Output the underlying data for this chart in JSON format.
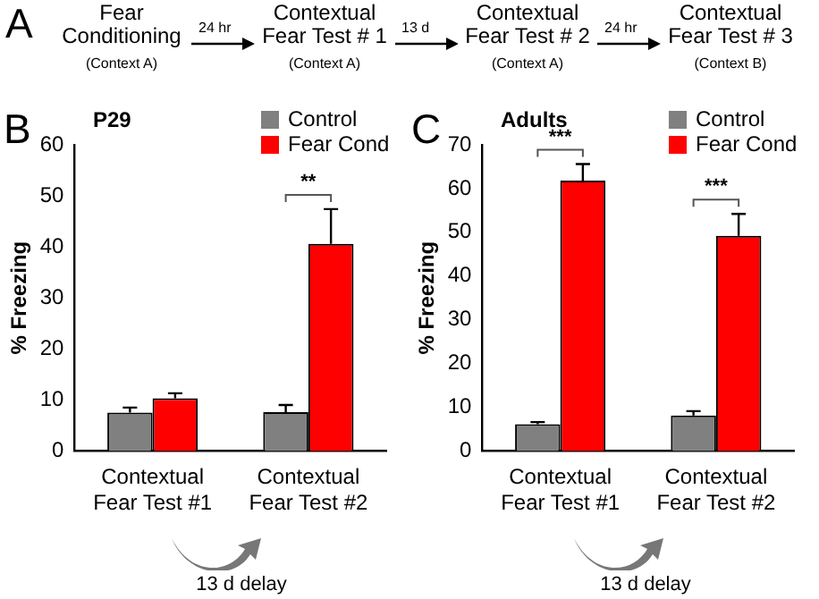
{
  "chart_data": [
    {
      "type": "other",
      "annotations": [
        "A",
        "Fear Conditioning",
        "(Context A)",
        "24 hr",
        "Contextual Fear Test # 1",
        "(Context A)",
        "13 d",
        "Contextual Fear Test # 2",
        "(Context A)",
        "24 hr",
        "Contextual Fear Test # 3",
        "(Context B)"
      ]
    },
    {
      "type": "bar",
      "title": "P29",
      "ylabel": "% Freezing",
      "categories": [
        "Contextual Fear Test #1",
        "Contextual Fear Test #2"
      ],
      "series": [
        {
          "name": "Control",
          "color": "#808080",
          "values": [
            7.5,
            7.6
          ],
          "errors": [
            1,
            1.4
          ]
        },
        {
          "name": "Fear Cond",
          "color": "#ff0000",
          "values": [
            10.3,
            40.6
          ],
          "errors": [
            1,
            6.8
          ]
        }
      ],
      "ylim": [
        0,
        60
      ],
      "yticks": [
        0,
        10,
        20,
        30,
        40,
        50,
        60
      ],
      "legend": "top right",
      "annotations": [
        "B",
        "13 d delay",
        "**"
      ]
    },
    {
      "type": "bar",
      "title": "Adults",
      "ylabel": "% Freezing",
      "categories": [
        "Contextual Fear Test #1",
        "Contextual Fear Test #2"
      ],
      "series": [
        {
          "name": "Control",
          "color": "#808080",
          "values": [
            6.1,
            8.1
          ],
          "errors": [
            0.5,
            1
          ]
        },
        {
          "name": "Fear Cond",
          "color": "#ff0000",
          "values": [
            61.8,
            49.2
          ],
          "errors": [
            3.8,
            5
          ]
        }
      ],
      "ylim": [
        0,
        70
      ],
      "yticks": [
        0,
        10,
        20,
        30,
        40,
        50,
        60,
        70
      ],
      "legend": "top right",
      "annotations": [
        "C",
        "13 d delay",
        "***",
        "***"
      ]
    }
  ]
}
